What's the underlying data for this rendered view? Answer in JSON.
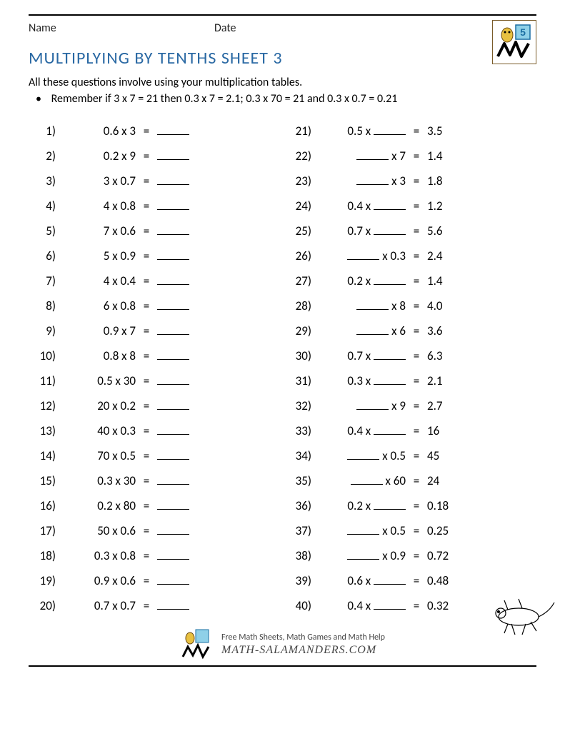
{
  "colors": {
    "title": "#2968a3",
    "text": "#000000",
    "rule": "#000000",
    "logo_border": "#7a5c2a",
    "grade_fill": "#8fd0e8",
    "grade_border": "#1b6fa3"
  },
  "fonts": {
    "body_family": "Calibri, Arial, sans-serif",
    "body_size_pt": 12,
    "title_size_pt": 18,
    "row_size_pt": 13
  },
  "header": {
    "name_label": "Name",
    "date_label": "Date",
    "grade_number": "5"
  },
  "title": "MULTIPLYING BY TENTHS SHEET 3",
  "intro": "All these questions involve using your multiplication tables.",
  "bullet": "Remember if 3 x 7 = 21 then 0.3 x 7 = 2.1; 0.3 x 70 = 21 and 0.3 x 0.7 = 0.21",
  "left_questions": [
    {
      "n": "1)",
      "lhs": "0.6 x 3"
    },
    {
      "n": "2)",
      "lhs": "0.2 x 9"
    },
    {
      "n": "3)",
      "lhs": "3 x 0.7"
    },
    {
      "n": "4)",
      "lhs": "4 x 0.8"
    },
    {
      "n": "5)",
      "lhs": "7 x 0.6"
    },
    {
      "n": "6)",
      "lhs": "5 x 0.9"
    },
    {
      "n": "7)",
      "lhs": "4 x 0.4"
    },
    {
      "n": "8)",
      "lhs": "6 x 0.8"
    },
    {
      "n": "9)",
      "lhs": "0.9 x 7"
    },
    {
      "n": "10)",
      "lhs": "0.8 x 8"
    },
    {
      "n": "11)",
      "lhs": "0.5 x 30"
    },
    {
      "n": "12)",
      "lhs": "20 x 0.2"
    },
    {
      "n": "13)",
      "lhs": "40 x 0.3"
    },
    {
      "n": "14)",
      "lhs": "70 x 0.5"
    },
    {
      "n": "15)",
      "lhs": "0.3 x 30"
    },
    {
      "n": "16)",
      "lhs": "0.2 x 80"
    },
    {
      "n": "17)",
      "lhs": "50 x 0.6"
    },
    {
      "n": "18)",
      "lhs": "0.3 x 0.8"
    },
    {
      "n": "19)",
      "lhs": "0.9 x 0.6"
    },
    {
      "n": "20)",
      "lhs": "0.7 x 0.7"
    }
  ],
  "right_questions": [
    {
      "n": "21)",
      "pre": "0.5 x ",
      "post": "",
      "ans": "3.5"
    },
    {
      "n": "22)",
      "pre": "",
      "post": " x 7",
      "ans": "1.4"
    },
    {
      "n": "23)",
      "pre": "",
      "post": " x 3",
      "ans": "1.8"
    },
    {
      "n": "24)",
      "pre": "0.4 x ",
      "post": "",
      "ans": "1.2"
    },
    {
      "n": "25)",
      "pre": "0.7 x ",
      "post": "",
      "ans": "5.6"
    },
    {
      "n": "26)",
      "pre": "",
      "post": " x 0.3",
      "ans": "2.4"
    },
    {
      "n": "27)",
      "pre": "0.2 x ",
      "post": "",
      "ans": "1.4"
    },
    {
      "n": "28)",
      "pre": "",
      "post": " x 8",
      "ans": "4.0"
    },
    {
      "n": "29)",
      "pre": "",
      "post": " x 6",
      "ans": "3.6"
    },
    {
      "n": "30)",
      "pre": "0.7 x ",
      "post": "",
      "ans": "6.3"
    },
    {
      "n": "31)",
      "pre": "0.3 x ",
      "post": "",
      "ans": "2.1"
    },
    {
      "n": "32)",
      "pre": "",
      "post": " x 9",
      "ans": "2.7"
    },
    {
      "n": "33)",
      "pre": "0.4 x ",
      "post": "",
      "ans": "16"
    },
    {
      "n": "34)",
      "pre": "",
      "post": " x 0.5",
      "ans": "45"
    },
    {
      "n": "35)",
      "pre": "",
      "post": " x 60",
      "ans": "24"
    },
    {
      "n": "36)",
      "pre": "0.2 x ",
      "post": "",
      "ans": "0.18"
    },
    {
      "n": "37)",
      "pre": "",
      "post": " x 0.5",
      "ans": "0.25"
    },
    {
      "n": "38)",
      "pre": "",
      "post": " x 0.9",
      "ans": "0.72"
    },
    {
      "n": "39)",
      "pre": "0.6 x ",
      "post": "",
      "ans": "0.48"
    },
    {
      "n": "40)",
      "pre": "0.4 x ",
      "post": "",
      "ans": "0.32"
    }
  ],
  "footer": {
    "line1": "Free Math Sheets, Math Games and Math Help",
    "site": "MATH-SALAMANDERS.COM"
  }
}
